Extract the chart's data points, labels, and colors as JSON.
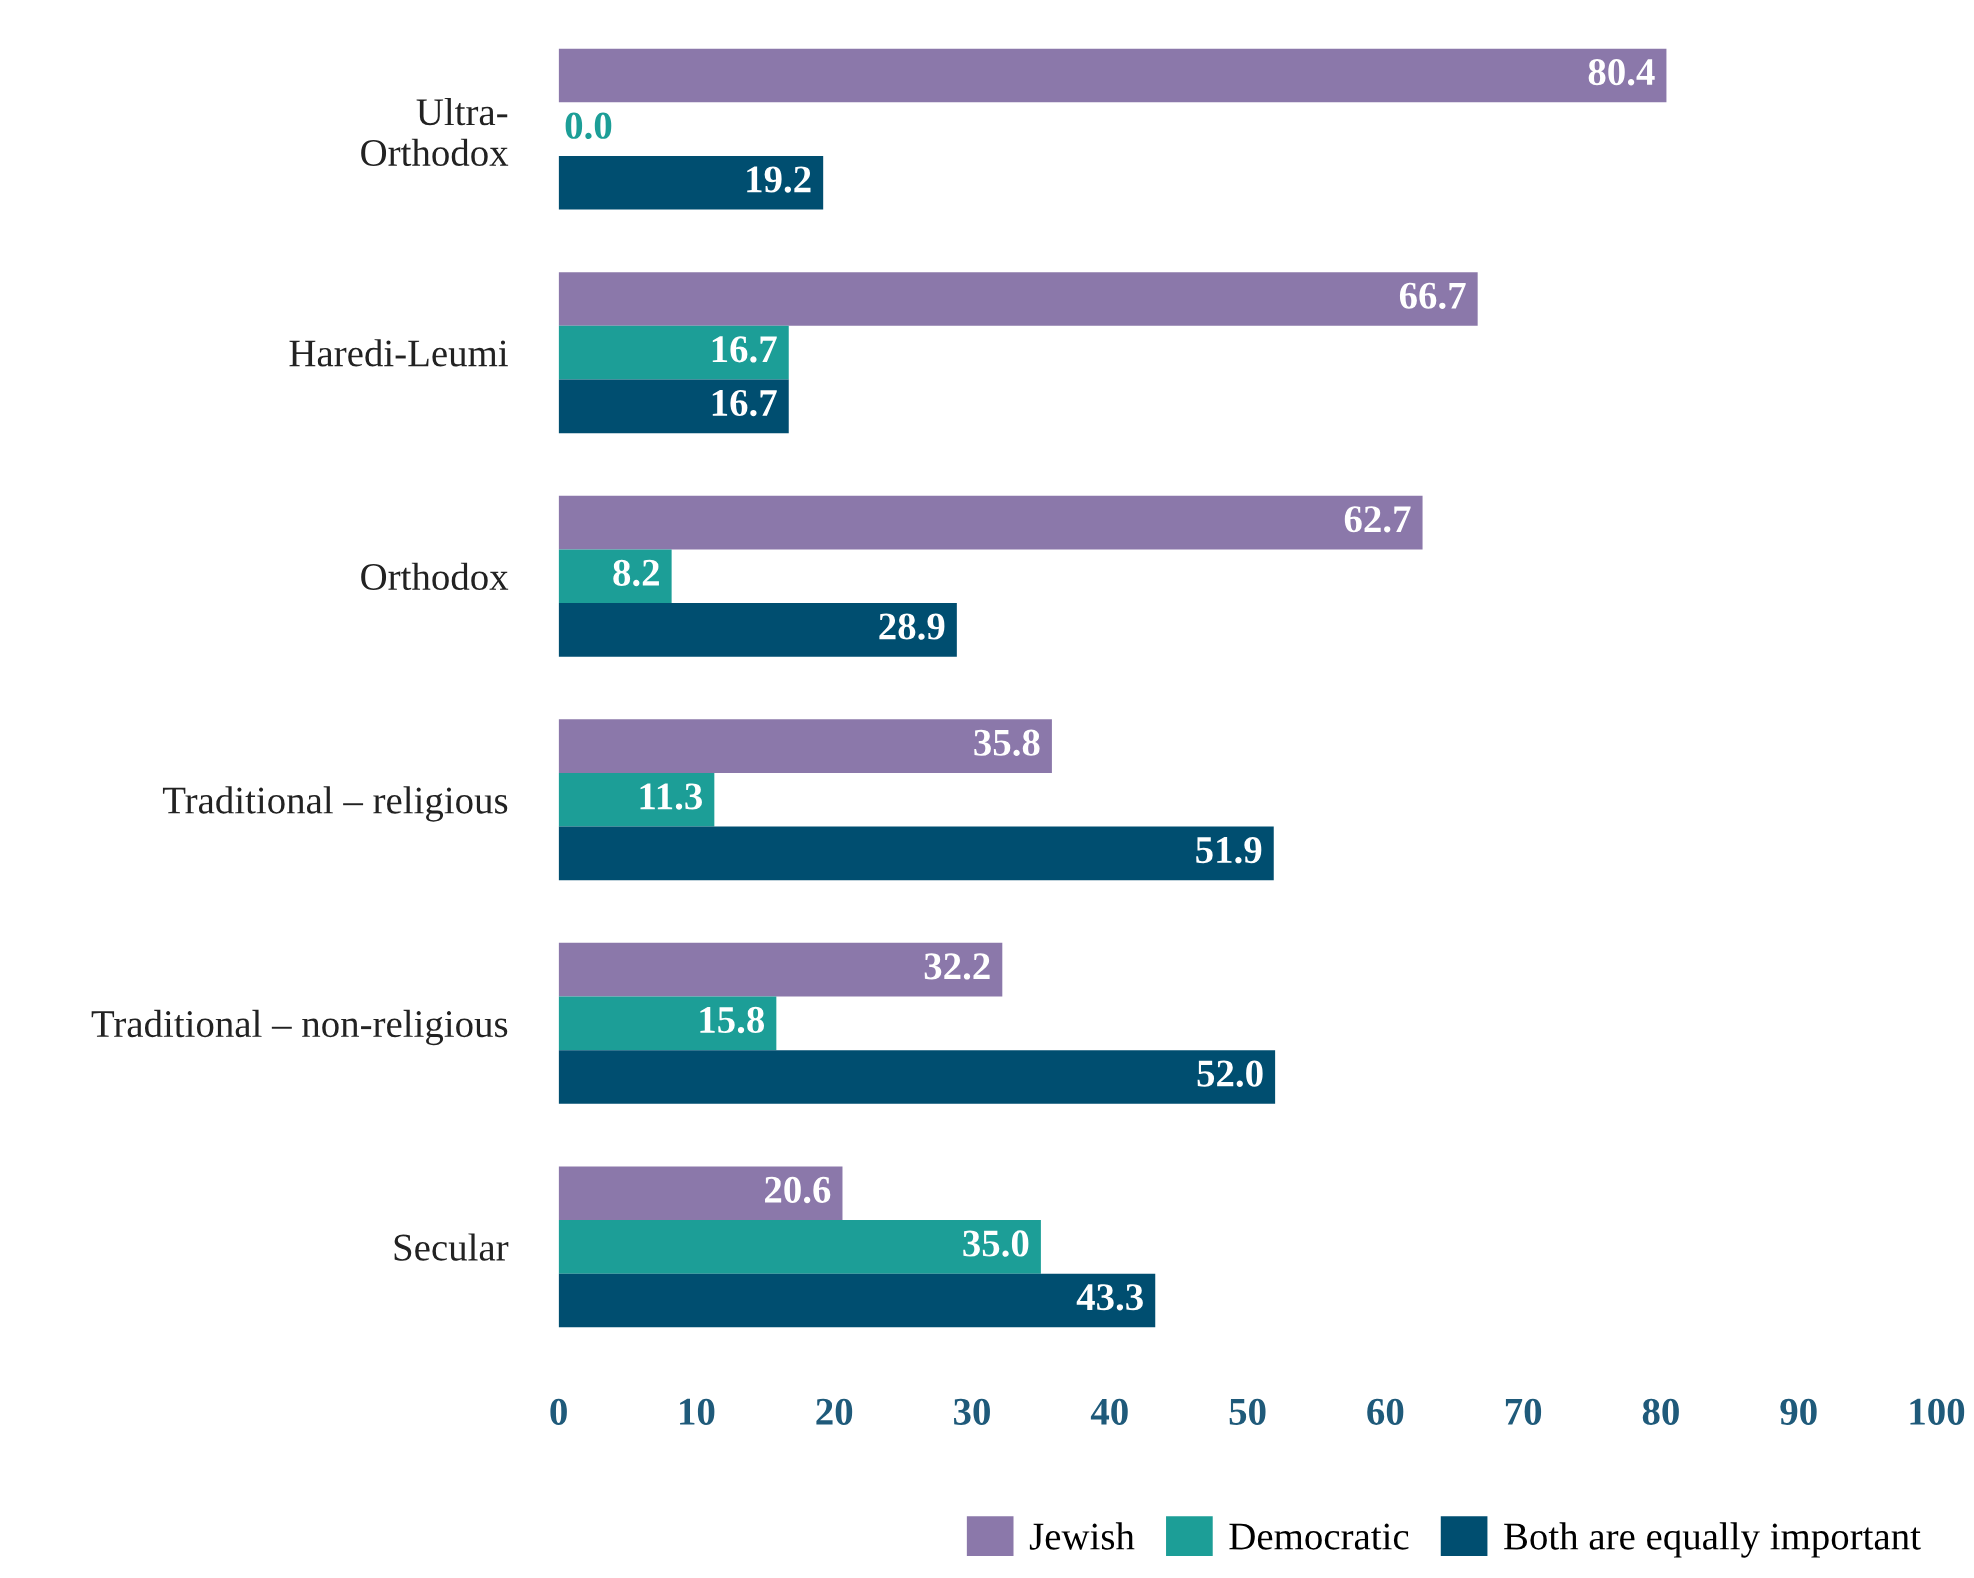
{
  "chart_data": {
    "type": "bar",
    "orientation": "horizontal",
    "categories": [
      "Ultra-\nOrthodox",
      "Haredi-Leumi",
      "Orthodox",
      "Traditional – religious",
      "Traditional – non-religious",
      "Secular"
    ],
    "series": [
      {
        "name": "Jewish",
        "color": "#8b78aa",
        "values": [
          80.4,
          66.7,
          62.7,
          35.8,
          32.2,
          20.6
        ],
        "value_labels": [
          "80.4",
          "66.7",
          "62.7",
          "35.8",
          "32.2",
          "20.6"
        ]
      },
      {
        "name": "Democratic",
        "color": "#1c9e97",
        "values": [
          0.0,
          16.7,
          8.2,
          11.3,
          15.8,
          35.0
        ],
        "value_labels": [
          "0.0",
          "16.7",
          "8.2",
          "11.3",
          "15.8",
          "35.0"
        ]
      },
      {
        "name": "Both are equally important",
        "color": "#004e70",
        "values": [
          19.2,
          16.7,
          28.9,
          51.9,
          52.0,
          43.3
        ],
        "value_labels": [
          "19.2",
          "16.7",
          "28.9",
          "51.9",
          "52.0",
          "43.3"
        ]
      }
    ],
    "xlim": [
      0,
      100
    ],
    "xticks": [
      0,
      10,
      20,
      30,
      40,
      50,
      60,
      70,
      80,
      90,
      100
    ],
    "legend": "bottom right",
    "grid": false
  }
}
